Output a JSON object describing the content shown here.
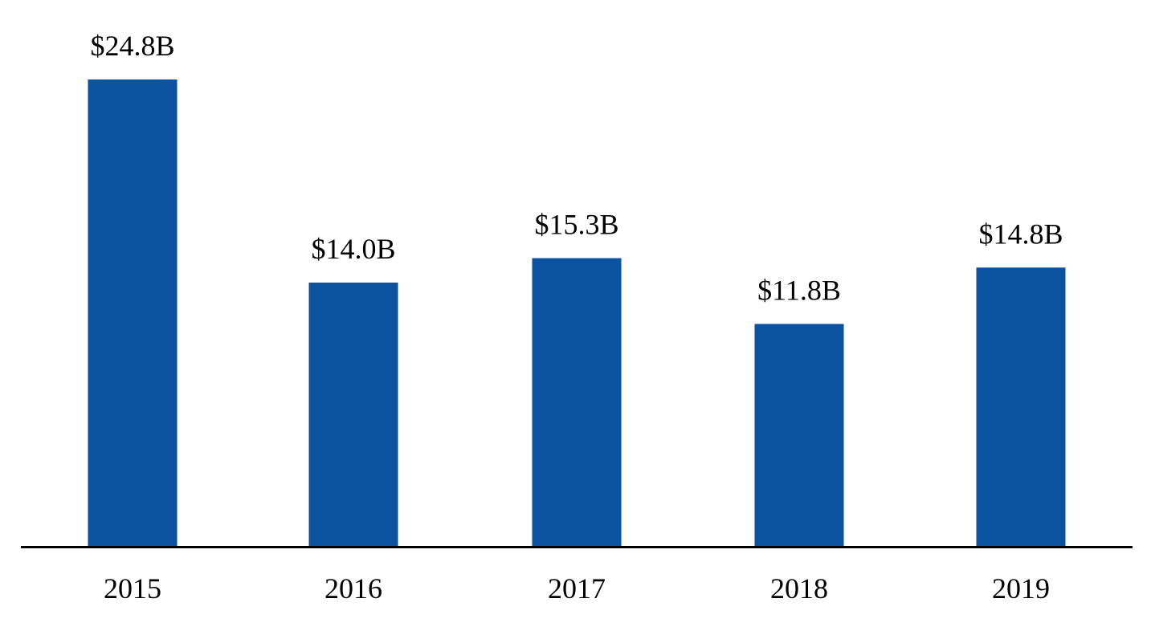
{
  "chart_data": {
    "type": "bar",
    "categories": [
      "2015",
      "2016",
      "2017",
      "2018",
      "2019"
    ],
    "values": [
      24.8,
      14.0,
      15.3,
      11.8,
      14.8
    ],
    "data_labels": [
      "$24.8B",
      "$14.0B",
      "$15.3B",
      "$11.8B",
      "$14.8B"
    ],
    "title": "",
    "xlabel": "",
    "ylabel": "",
    "ylim": [
      0,
      24.8
    ],
    "grid": false,
    "legend": "none",
    "bar_color": "#0B53A0",
    "axis_color": "#000000"
  }
}
